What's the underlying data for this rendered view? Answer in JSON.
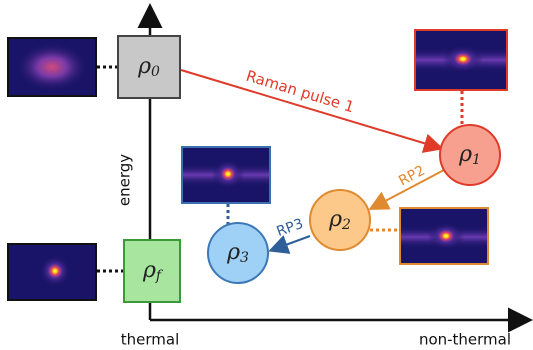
{
  "axes": {
    "y_label": "energy",
    "x_start_label": "thermal",
    "x_end_label": "non-thermal"
  },
  "nodes": [
    {
      "symbol": "ρ",
      "subscript": "0"
    },
    {
      "symbol": "ρ",
      "subscript": "1"
    },
    {
      "symbol": "ρ",
      "subscript": "2"
    },
    {
      "symbol": "ρ",
      "subscript": "3"
    },
    {
      "symbol": "ρ",
      "subscript": "f"
    }
  ],
  "arrows": [
    {
      "label": "Raman pulse 1"
    },
    {
      "label": "RP2"
    },
    {
      "label": "RP3"
    }
  ]
}
